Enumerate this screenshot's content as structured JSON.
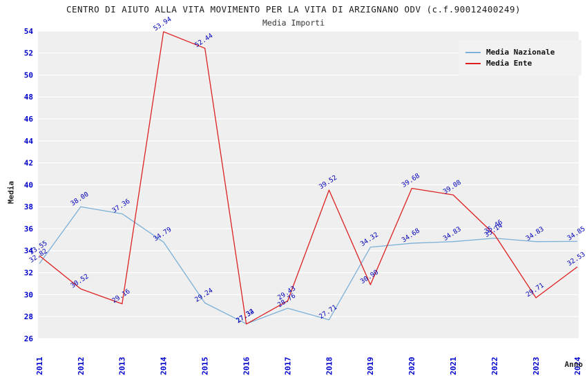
{
  "header": {
    "title": "CENTRO DI AIUTO ALLA VITA MOVIMENTO PER LA VITA DI ARZIGNANO ODV (c.f.90012400249)",
    "subtitle": "Media Importi"
  },
  "axes": {
    "y_label": "Media",
    "x_label": "Anno"
  },
  "legend": {
    "items": [
      {
        "label": "Media Nazionale",
        "color": "#7bb0d8"
      },
      {
        "label": "Media Ente",
        "color": "#dd1f1f"
      }
    ]
  },
  "style": {
    "plot_bg": "#efefef",
    "grid_color": "#ffffff",
    "tick_color": "#0000cc",
    "data_label_color": "#0000bb"
  },
  "chart_data": {
    "type": "line",
    "title": "CENTRO DI AIUTO ALLA VITA MOVIMENTO PER LA VITA DI ARZIGNANO ODV (c.f.90012400249)",
    "subtitle": "Media Importi",
    "xlabel": "Anno",
    "ylabel": "Media",
    "x": [
      2011,
      2012,
      2013,
      2014,
      2015,
      2016,
      2017,
      2018,
      2019,
      2020,
      2021,
      2022,
      2023,
      2024
    ],
    "ylim": [
      26,
      54
    ],
    "yticks": [
      26,
      28,
      30,
      32,
      34,
      36,
      38,
      40,
      42,
      44,
      46,
      48,
      50,
      52,
      54
    ],
    "grid": "horizontal",
    "legend_position": "top-right",
    "series": [
      {
        "name": "Media Nazionale",
        "color": "#7bb0d8",
        "values": [
          32.82,
          38.0,
          37.36,
          34.79,
          29.24,
          27.34,
          28.76,
          27.71,
          34.32,
          34.68,
          34.83,
          35.14,
          34.83,
          34.85
        ]
      },
      {
        "name": "Media Ente",
        "color": "#dd1f1f",
        "values": [
          33.55,
          30.52,
          29.16,
          53.94,
          52.44,
          27.32,
          29.43,
          39.52,
          30.9,
          39.68,
          39.08,
          35.46,
          29.71,
          32.53
        ]
      }
    ]
  }
}
